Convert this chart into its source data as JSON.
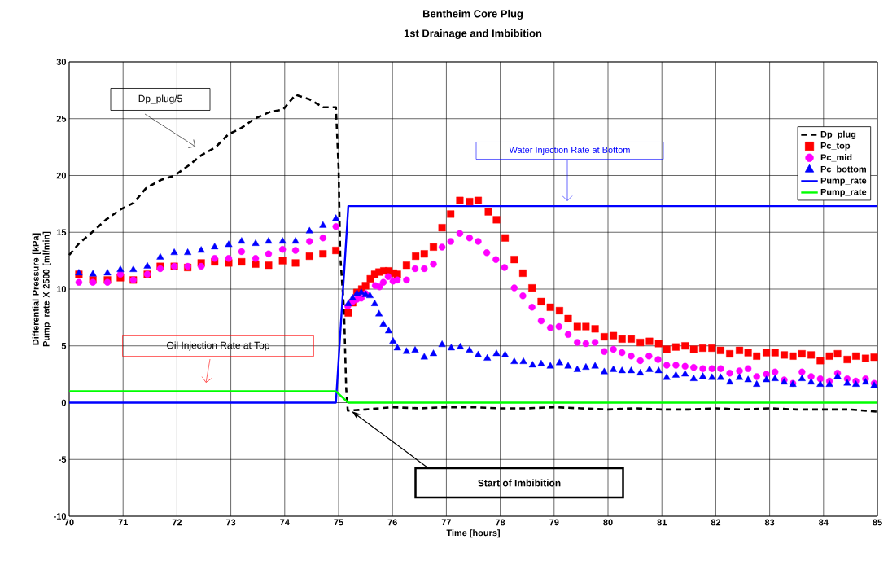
{
  "chart_data": {
    "type": "line",
    "title": "Bentheim Core Plug",
    "subtitle": "1st Drainage and Imbibition",
    "xlabel": "Time [hours]",
    "ylabel": "Differential Pressure [kPa] Pump_rate X 2500 [ml/min]",
    "xlim": [
      70,
      85
    ],
    "ylim": [
      -10,
      30
    ],
    "xticks": [
      70,
      71,
      72,
      73,
      74,
      75,
      76,
      77,
      78,
      79,
      80,
      81,
      82,
      83,
      84,
      85
    ],
    "yticks": [
      -10,
      -5,
      0,
      5,
      10,
      15,
      20,
      25,
      30
    ],
    "grid": true,
    "legend": "top right",
    "series": [
      {
        "name": "Dp_plug",
        "line_style": "dashed",
        "color": "#000000",
        "x": [
          70,
          70.18,
          70.45,
          70.68,
          70.95,
          71.2,
          71.43,
          71.7,
          71.96,
          72.22,
          72.46,
          72.72,
          72.95,
          73.2,
          73.44,
          73.73,
          73.97,
          74.2,
          74.46,
          74.71,
          74.95,
          75.0,
          75.03,
          75.1,
          75.14,
          75.17,
          75.5,
          76,
          76.5,
          77,
          77.5,
          78,
          78.5,
          79,
          79.5,
          80,
          80.5,
          81,
          81.5,
          82,
          82.5,
          83,
          83.5,
          84,
          84.5,
          85
        ],
        "values": [
          13.0,
          14.0,
          15.1,
          16.1,
          17.0,
          17.6,
          18.9,
          19.6,
          20.0,
          20.9,
          21.8,
          22.5,
          23.6,
          24.2,
          25.0,
          25.6,
          25.8,
          27.1,
          26.7,
          26.0,
          26.0,
          20.6,
          13.0,
          8.2,
          1.3,
          -0.7,
          -0.6,
          -0.4,
          -0.5,
          -0.4,
          -0.4,
          -0.5,
          -0.5,
          -0.4,
          -0.5,
          -0.6,
          -0.5,
          -0.6,
          -0.6,
          -0.5,
          -0.6,
          -0.5,
          -0.6,
          -0.6,
          -0.6,
          -0.8
        ]
      },
      {
        "name": "Pc_top",
        "type": "scatter",
        "marker": "square",
        "color": "#ff0000",
        "x": [
          70.18,
          70.44,
          70.71,
          70.95,
          71.19,
          71.45,
          71.69,
          71.95,
          72.2,
          72.45,
          72.7,
          72.96,
          73.2,
          73.46,
          73.7,
          73.96,
          74.2,
          74.46,
          74.71,
          74.95,
          75.18,
          75.26,
          75.34,
          75.43,
          75.5,
          75.59,
          75.67,
          75.75,
          75.84,
          75.93,
          76.02,
          76.09,
          76.26,
          76.43,
          76.59,
          76.76,
          76.92,
          77.08,
          77.25,
          77.43,
          77.59,
          77.78,
          77.93,
          78.09,
          78.26,
          78.42,
          78.59,
          78.76,
          78.93,
          79.1,
          79.26,
          79.43,
          79.59,
          79.76,
          79.93,
          80.1,
          80.26,
          80.43,
          80.6,
          80.77,
          80.94,
          81.09,
          81.26,
          81.43,
          81.59,
          81.76,
          81.93,
          82.09,
          82.26,
          82.44,
          82.6,
          82.76,
          82.94,
          83.1,
          83.27,
          83.43,
          83.6,
          83.77,
          83.94,
          84.11,
          84.26,
          84.44,
          84.6,
          84.78,
          84.94
        ],
        "values": [
          11.3,
          10.8,
          10.8,
          11.0,
          10.8,
          11.3,
          12.0,
          12.0,
          11.9,
          12.3,
          12.4,
          12.3,
          12.4,
          12.2,
          12.1,
          12.5,
          12.3,
          12.9,
          13.1,
          13.4,
          7.9,
          8.8,
          9.7,
          10.0,
          10.3,
          10.9,
          11.3,
          11.5,
          11.6,
          11.6,
          11.4,
          11.3,
          12.1,
          12.9,
          13.1,
          13.7,
          15.4,
          16.6,
          17.8,
          17.7,
          17.8,
          16.8,
          16.1,
          14.5,
          12.6,
          11.4,
          10.1,
          8.9,
          8.4,
          8.1,
          7.4,
          6.7,
          6.7,
          6.5,
          5.8,
          5.9,
          5.6,
          5.6,
          5.3,
          5.4,
          5.2,
          4.7,
          4.9,
          5.0,
          4.7,
          4.8,
          4.8,
          4.6,
          4.3,
          4.6,
          4.4,
          4.1,
          4.4,
          4.4,
          4.2,
          4.1,
          4.3,
          4.2,
          3.7,
          4.1,
          4.3,
          3.8,
          4.1,
          3.9,
          4.0
        ]
      },
      {
        "name": "Pc_mid",
        "type": "scatter",
        "marker": "circle",
        "color": "#ff00ff",
        "x": [
          70.18,
          70.44,
          70.71,
          70.95,
          71.19,
          71.45,
          71.69,
          71.95,
          72.2,
          72.45,
          72.7,
          72.96,
          73.2,
          73.46,
          73.7,
          73.96,
          74.2,
          74.46,
          74.71,
          74.95,
          75.17,
          75.26,
          75.34,
          75.42,
          75.5,
          75.68,
          75.76,
          75.83,
          75.92,
          76.01,
          76.09,
          76.26,
          76.42,
          76.59,
          76.76,
          76.92,
          77.08,
          77.25,
          77.43,
          77.59,
          77.75,
          77.92,
          78.08,
          78.26,
          78.42,
          78.59,
          78.76,
          78.93,
          79.09,
          79.26,
          79.43,
          79.59,
          79.76,
          79.93,
          80.1,
          80.26,
          80.43,
          80.6,
          80.76,
          80.93,
          81.09,
          81.26,
          81.43,
          81.59,
          81.76,
          81.93,
          82.09,
          82.26,
          82.44,
          82.6,
          82.76,
          82.94,
          83.1,
          83.27,
          83.43,
          83.6,
          83.77,
          83.94,
          84.11,
          84.26,
          84.44,
          84.6,
          84.78,
          84.94
        ],
        "values": [
          10.6,
          10.6,
          10.6,
          11.3,
          10.8,
          11.3,
          11.8,
          12.0,
          12.0,
          12.0,
          12.7,
          12.7,
          13.3,
          12.7,
          13.1,
          13.5,
          13.4,
          14.2,
          14.5,
          15.5,
          8.5,
          8.9,
          9.1,
          9.2,
          9.6,
          10.3,
          10.2,
          10.6,
          11.1,
          10.7,
          10.8,
          10.8,
          11.8,
          11.8,
          12.2,
          13.7,
          14.2,
          14.9,
          14.5,
          14.2,
          13.2,
          12.6,
          11.9,
          10.1,
          9.4,
          8.4,
          7.2,
          6.6,
          6.7,
          6.0,
          5.3,
          5.2,
          5.3,
          4.5,
          4.7,
          4.4,
          4.1,
          3.7,
          4.1,
          3.8,
          3.3,
          3.3,
          3.2,
          3.1,
          3.0,
          3.0,
          3.0,
          2.6,
          2.8,
          3.0,
          2.3,
          2.5,
          2.7,
          2.0,
          1.7,
          2.7,
          2.3,
          2.1,
          1.9,
          2.6,
          2.1,
          1.9,
          2.1,
          1.7
        ]
      },
      {
        "name": "Pc_bottom",
        "type": "scatter",
        "marker": "triangle",
        "color": "#0000ff",
        "x": [
          70.18,
          70.44,
          70.71,
          70.95,
          71.19,
          71.45,
          71.69,
          71.95,
          72.2,
          72.45,
          72.7,
          72.96,
          73.2,
          73.46,
          73.7,
          73.96,
          74.2,
          74.46,
          74.71,
          74.95,
          75.18,
          75.26,
          75.34,
          75.42,
          75.5,
          75.58,
          75.67,
          75.75,
          75.83,
          75.93,
          76.01,
          76.09,
          76.26,
          76.42,
          76.59,
          76.76,
          76.92,
          77.09,
          77.26,
          77.43,
          77.59,
          77.76,
          77.93,
          78.09,
          78.26,
          78.43,
          78.6,
          78.76,
          78.93,
          79.1,
          79.26,
          79.43,
          79.59,
          79.76,
          79.93,
          80.1,
          80.26,
          80.43,
          80.6,
          80.77,
          80.94,
          81.09,
          81.26,
          81.43,
          81.59,
          81.76,
          81.93,
          82.09,
          82.26,
          82.44,
          82.6,
          82.76,
          82.94,
          83.1,
          83.27,
          83.43,
          83.6,
          83.77,
          83.94,
          84.11,
          84.26,
          84.44,
          84.6,
          84.78,
          84.94
        ],
        "values": [
          11.4,
          11.3,
          11.4,
          11.7,
          11.7,
          12.0,
          12.8,
          13.2,
          13.2,
          13.4,
          13.7,
          13.9,
          14.2,
          14.0,
          14.2,
          14.2,
          14.2,
          15.1,
          15.6,
          16.2,
          8.7,
          9.2,
          9.6,
          9.7,
          9.5,
          9.4,
          8.7,
          7.8,
          6.9,
          6.3,
          5.4,
          4.8,
          4.5,
          4.6,
          4.0,
          4.3,
          5.1,
          4.8,
          4.9,
          4.6,
          4.2,
          3.9,
          4.3,
          4.2,
          3.6,
          3.6,
          3.3,
          3.4,
          3.2,
          3.5,
          3.2,
          2.9,
          3.1,
          3.2,
          2.7,
          2.9,
          2.8,
          2.8,
          2.6,
          2.9,
          2.8,
          2.2,
          2.4,
          2.5,
          2.1,
          2.3,
          2.2,
          2.2,
          1.8,
          2.2,
          2.0,
          1.6,
          2.0,
          2.1,
          1.8,
          1.6,
          2.1,
          1.8,
          1.6,
          1.6,
          2.3,
          1.7,
          1.6,
          1.8,
          1.5
        ]
      },
      {
        "name": "Pump_rate",
        "line_style": "solid",
        "color": "#0000ff",
        "x": [
          70,
          74.95,
          75.18,
          85
        ],
        "values": [
          0,
          0,
          17.3,
          17.3
        ]
      },
      {
        "name": "Pump_rate",
        "line_style": "solid",
        "color": "#00ff00",
        "x": [
          70,
          74.95,
          75.18,
          85
        ],
        "values": [
          1,
          1,
          0,
          0
        ]
      }
    ],
    "annotations": [
      "Dp_plug/5",
      "Water Injection Rate at Bottom",
      "Oil Injection Rate at Top",
      "Start of Imbibition"
    ]
  }
}
